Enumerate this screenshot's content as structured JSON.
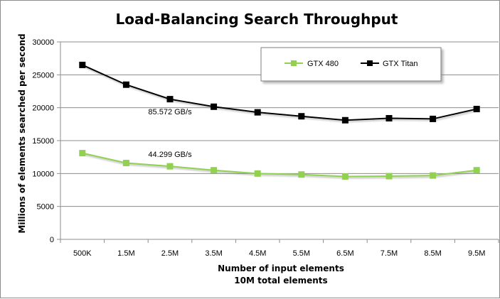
{
  "chart_data": {
    "type": "line",
    "title": "Load-Balancing Search Throughput",
    "xlabel": "Number of input elements",
    "xlabel_sub": "10M total elements",
    "ylabel": "Millions of elements searched per second",
    "categories": [
      "500K",
      "1.5M",
      "2.5M",
      "3.5M",
      "4.5M",
      "5.5M",
      "6.5M",
      "7.5M",
      "8.5M",
      "9.5M"
    ],
    "ylim": [
      0,
      30000
    ],
    "yticks": [
      0,
      5000,
      10000,
      15000,
      20000,
      25000,
      30000
    ],
    "grid": true,
    "legend_position": "top-right",
    "series": [
      {
        "name": "GTX 480",
        "color": "#92d050",
        "marker": "square",
        "values": [
          13100,
          11600,
          11100,
          10500,
          10000,
          9850,
          9550,
          9600,
          9700,
          10500
        ]
      },
      {
        "name": "GTX Titan",
        "color": "#000000",
        "marker": "square",
        "values": [
          26500,
          23500,
          21300,
          20150,
          19300,
          18700,
          18100,
          18400,
          18300,
          19800
        ]
      }
    ],
    "annotations": [
      {
        "text": "85.572 GB/s",
        "series": "GTX Titan"
      },
      {
        "text": "44.299 GB/s",
        "series": "GTX 480"
      }
    ]
  }
}
